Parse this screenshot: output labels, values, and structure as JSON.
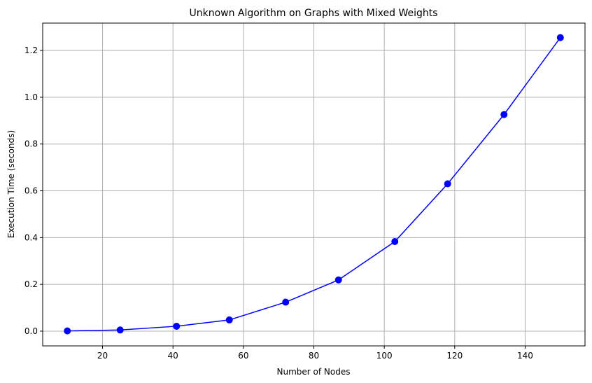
{
  "chart_data": {
    "type": "line",
    "title": "Unknown Algorithm on Graphs with Mixed Weights",
    "xlabel": "Number of Nodes",
    "ylabel": "Execution Time (seconds)",
    "xlim": [
      3,
      157
    ],
    "ylim": [
      -0.063,
      1.317
    ],
    "xticks": [
      20,
      40,
      60,
      80,
      100,
      120,
      140
    ],
    "yticks": [
      0.0,
      0.2,
      0.4,
      0.6,
      0.8,
      1.0,
      1.2
    ],
    "xtick_labels": [
      "20",
      "40",
      "60",
      "80",
      "100",
      "120",
      "140"
    ],
    "ytick_labels": [
      "0.0",
      "0.2",
      "0.4",
      "0.6",
      "0.8",
      "1.0",
      "1.2"
    ],
    "grid": true,
    "color": "#0000ff",
    "marker": "circle",
    "x": [
      10,
      25,
      41,
      56,
      72,
      87,
      103,
      118,
      134,
      150
    ],
    "y": [
      0.001,
      0.005,
      0.021,
      0.048,
      0.124,
      0.219,
      0.383,
      0.63,
      0.926,
      1.255
    ]
  }
}
